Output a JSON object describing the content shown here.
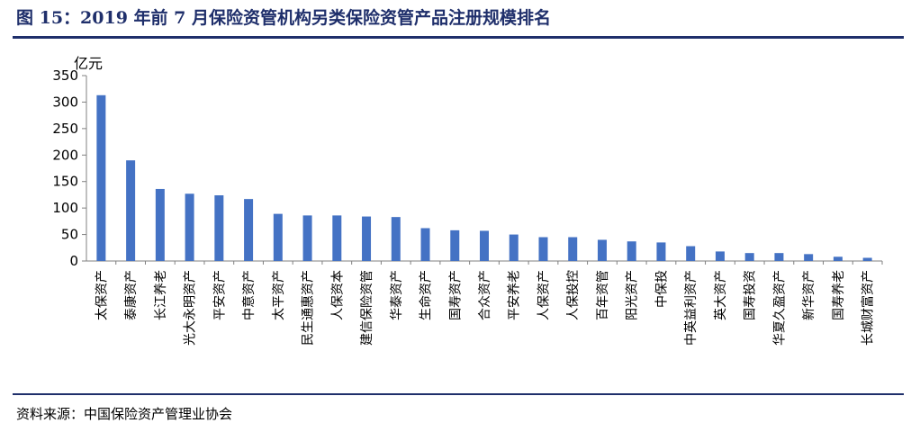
{
  "title": "图 15：2019 年前 7 月保险资管机构另类保险资管产品注册规模排名",
  "source": "资料来源：中国保险资产管理业协会",
  "colors": {
    "bar": "#4472C4",
    "title": "#1f2f6b",
    "axis": "#808080"
  },
  "chart_data": {
    "type": "bar",
    "title": "",
    "xlabel": "",
    "ylabel": "亿元",
    "ylim": [
      0,
      350
    ],
    "yticks": [
      0,
      50,
      100,
      150,
      200,
      250,
      300,
      350
    ],
    "grid": false,
    "legend": "none",
    "categories": [
      "太保资产",
      "泰康资产",
      "长江养老",
      "光大永明资产",
      "平安资产",
      "中意资产",
      "太平资产",
      "民生通惠资产",
      "人保资本",
      "建信保险资管",
      "华泰资产",
      "生命资产",
      "国寿资产",
      "合众资产",
      "平安养老",
      "人保资产",
      "人保投控",
      "百年资管",
      "阳光资产",
      "中保投",
      "中英益利资产",
      "英大资产",
      "国寿投资",
      "华夏久盈资产",
      "新华资产",
      "国寿养老",
      "长城财富资产"
    ],
    "values": [
      313,
      190,
      136,
      127,
      124,
      117,
      89,
      86,
      86,
      84,
      83,
      62,
      58,
      57,
      50,
      45,
      45,
      40,
      37,
      35,
      28,
      18,
      15,
      15,
      13,
      8,
      6
    ]
  }
}
